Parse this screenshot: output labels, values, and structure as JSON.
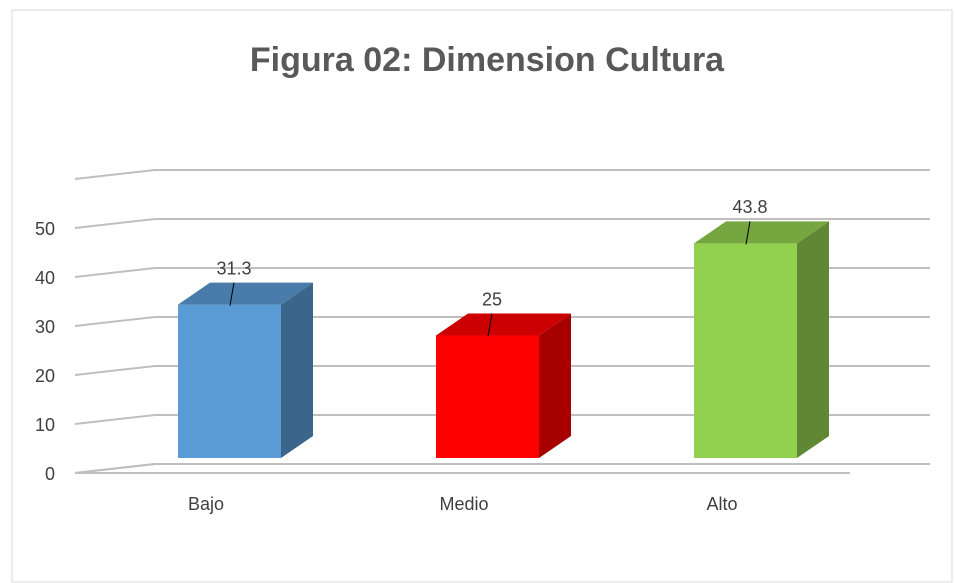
{
  "chart_data": {
    "type": "bar3d",
    "title": "Figura 02: Dimension Cultura",
    "categories": [
      "Bajo",
      "Medio",
      "Alto"
    ],
    "values": [
      31.3,
      25,
      43.8
    ],
    "colors": [
      "#5b9bd5",
      "#ff0000",
      "#92d050"
    ],
    "ylim": [
      0,
      60
    ],
    "yticks": [
      0,
      10,
      20,
      30,
      40,
      50
    ],
    "grid": true
  }
}
